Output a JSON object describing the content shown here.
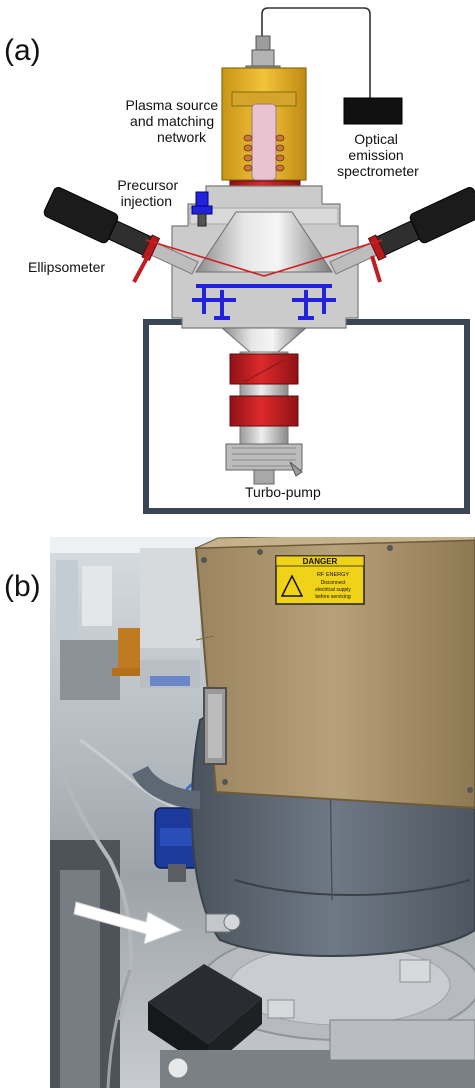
{
  "panel_a": {
    "label": "(a)",
    "callouts": {
      "plasma_source_line1": "Plasma source",
      "plasma_source_line2": "and matching",
      "plasma_source_line3": "network",
      "oes_line1": "Optical",
      "oes_line2": "emission",
      "oes_line3": "spectrometer",
      "precursor_line1": "Precursor",
      "precursor_line2": "injection",
      "ellipsometer": "Ellipsometer",
      "turbo_pump": "Turbo-pump"
    },
    "colors": {
      "plasma_housing": "#e8b52a",
      "plasma_tube": "#e9c3cf",
      "rf_coil": "#c87838",
      "flange_red": "#c21d20",
      "chamber_gray": "#c9c9c9",
      "chamber_outline": "#7a7a7a",
      "substrate_blue": "#2222dd",
      "frame": "#3a4656",
      "ellipsometer_body": "#1b1b1b",
      "beam": "#d02020"
    }
  },
  "panel_b": {
    "label": "(b)",
    "sign": {
      "title": "DANGER",
      "line1": "RF ENERGY",
      "line2": "Disconnect",
      "line3": "electrical supply",
      "line4": "before servicing"
    },
    "colors": {
      "housing": "#a8936a",
      "jacket": "#5e6874",
      "sign_yellow": "#f0d218",
      "arrow": "#ffffff",
      "detector": "#1f2024"
    }
  }
}
